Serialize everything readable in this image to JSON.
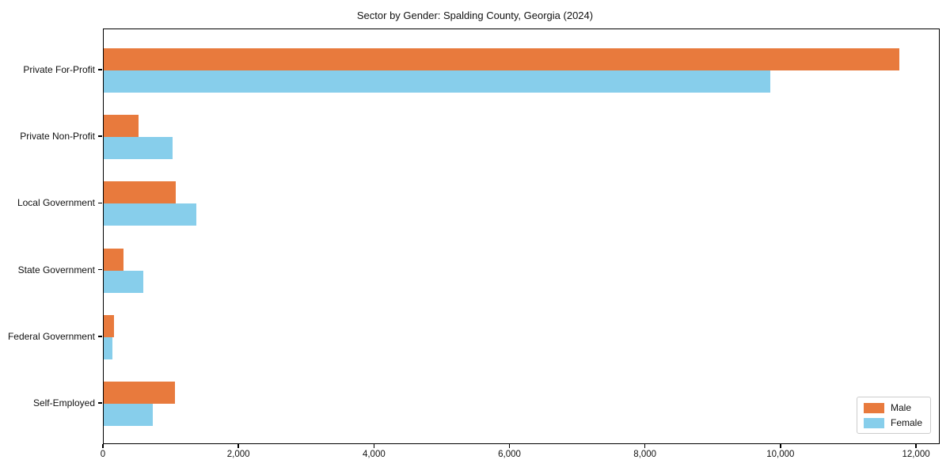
{
  "chart_data": {
    "type": "bar",
    "orientation": "horizontal",
    "title": "Sector by Gender: Spalding County, Georgia (2024)",
    "categories": [
      "Private For-Profit",
      "Private Non-Profit",
      "Local Government",
      "State Government",
      "Federal Government",
      "Self-Employed"
    ],
    "series": [
      {
        "name": "Male",
        "color": "#e87a3d",
        "values": [
          11760,
          515,
          1060,
          290,
          155,
          1055
        ]
      },
      {
        "name": "Female",
        "color": "#87ceeb",
        "values": [
          9860,
          1020,
          1370,
          580,
          130,
          720
        ]
      }
    ],
    "xlabel": "",
    "ylabel": "",
    "xlim": [
      0,
      12350
    ],
    "xticks": [
      0,
      2000,
      4000,
      6000,
      8000,
      10000,
      12000
    ],
    "xtick_labels": [
      "0",
      "2,000",
      "4,000",
      "6,000",
      "8,000",
      "10,000",
      "12,000"
    ],
    "grid": false,
    "legend": {
      "position": "lower-right",
      "entries": [
        "Male",
        "Female"
      ]
    }
  }
}
